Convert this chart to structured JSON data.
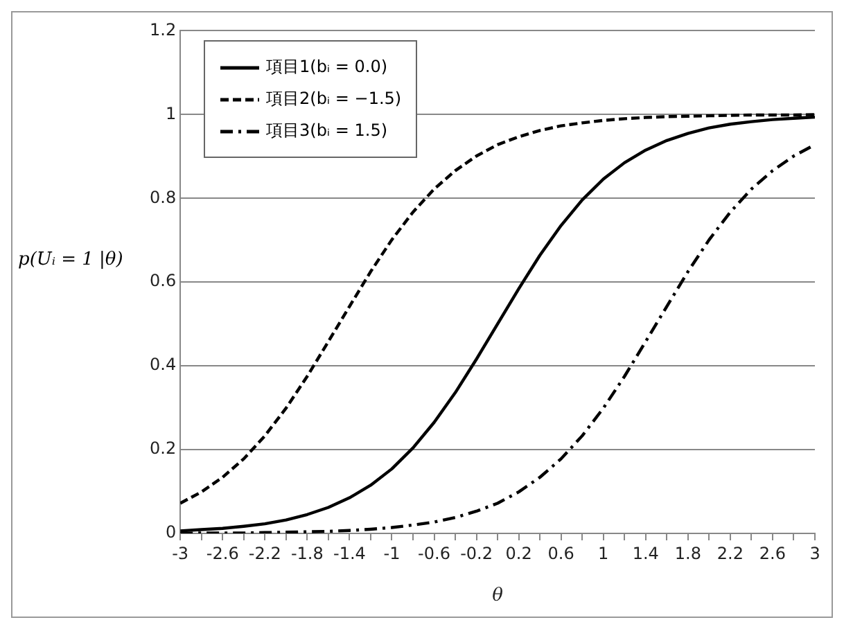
{
  "chart_data": {
    "type": "line",
    "xlabel": "θ",
    "ylabel": "p(Uᵢ = 1 |θ)",
    "x": [
      -3,
      -2.8,
      -2.6,
      -2.4,
      -2.2,
      -2,
      -1.8,
      -1.6,
      -1.4,
      -1.2,
      -1,
      -0.8,
      -0.6,
      -0.4,
      -0.2,
      0,
      0.2,
      0.4,
      0.6,
      0.8,
      1,
      1.2,
      1.4,
      1.6,
      1.8,
      2,
      2.2,
      2.4,
      2.6,
      2.8,
      3
    ],
    "series": [
      {
        "name": "項目1(bᵢ = 0.0)",
        "color": "#000000",
        "line_style": "solid",
        "values": [
          0.006,
          0.009,
          0.012,
          0.017,
          0.023,
          0.032,
          0.045,
          0.062,
          0.085,
          0.115,
          0.154,
          0.204,
          0.265,
          0.336,
          0.416,
          0.5,
          0.584,
          0.664,
          0.735,
          0.796,
          0.846,
          0.885,
          0.915,
          0.938,
          0.955,
          0.968,
          0.977,
          0.983,
          0.988,
          0.991,
          0.994
        ]
      },
      {
        "name": "項目2(bᵢ = −1.5)",
        "color": "#000000",
        "line_style": "dashed",
        "values": [
          0.072,
          0.099,
          0.134,
          0.178,
          0.233,
          0.299,
          0.375,
          0.458,
          0.542,
          0.625,
          0.701,
          0.767,
          0.822,
          0.866,
          0.901,
          0.928,
          0.947,
          0.962,
          0.973,
          0.98,
          0.986,
          0.99,
          0.993,
          0.995,
          0.996,
          0.997,
          0.998,
          0.999,
          0.999,
          0.999,
          1.0
        ]
      },
      {
        "name": "項目3(bᵢ = 1.5)",
        "color": "#000000",
        "line_style": "dashdot",
        "values": [
          0.0,
          0.001,
          0.001,
          0.001,
          0.002,
          0.003,
          0.004,
          0.005,
          0.007,
          0.01,
          0.014,
          0.02,
          0.027,
          0.038,
          0.053,
          0.072,
          0.099,
          0.134,
          0.178,
          0.233,
          0.299,
          0.375,
          0.458,
          0.542,
          0.625,
          0.701,
          0.767,
          0.822,
          0.866,
          0.901,
          0.928
        ]
      }
    ],
    "xlim": [
      -3,
      3
    ],
    "xticks": [
      -3,
      {
        "value": -2.8,
        "label": null
      },
      -2.6,
      {
        "value": -2.4,
        "label": null
      },
      -2.2,
      {
        "value": -2,
        "label": null
      },
      -1.8,
      {
        "value": -1.6,
        "label": null
      },
      -1.4,
      {
        "value": -1.2,
        "label": null
      },
      -1,
      {
        "value": -0.8,
        "label": null
      },
      -0.6,
      {
        "value": -0.4,
        "label": null
      },
      -0.2,
      {
        "value": 0,
        "label": null
      },
      0.2,
      {
        "value": 0.4,
        "label": null
      },
      0.6,
      {
        "value": 0.8,
        "label": null
      },
      1,
      {
        "value": 1.2,
        "label": null
      },
      1.4,
      {
        "value": 1.6,
        "label": null
      },
      1.8,
      {
        "value": 2,
        "label": null
      },
      2.2,
      {
        "value": 2.4,
        "label": null
      },
      2.6,
      {
        "value": 2.8,
        "label": null
      },
      3
    ],
    "ylim": [
      0,
      1.2
    ],
    "yticks": [
      0,
      0.2,
      0.4,
      0.6,
      0.8,
      1,
      1.2
    ],
    "grid": "y",
    "legend": "top left",
    "marker": "none"
  }
}
